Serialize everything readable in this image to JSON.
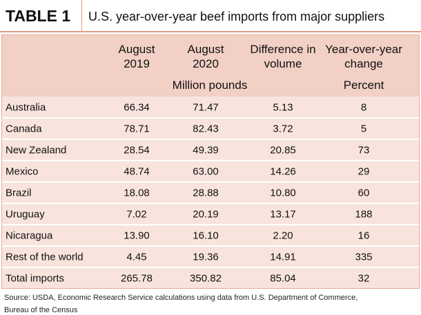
{
  "header": {
    "label": "TABLE 1",
    "title": "U.S. year-over-year beef imports from major suppliers"
  },
  "table": {
    "columns": [
      [
        "August",
        "2019"
      ],
      [
        "August",
        "2020"
      ],
      [
        "Difference in",
        "volume"
      ],
      [
        "Year-over-year",
        "change"
      ]
    ],
    "units": [
      "Million pounds",
      "Percent"
    ],
    "rows": [
      [
        "Australia",
        "66.34",
        "71.47",
        "5.13",
        "8"
      ],
      [
        "Canada",
        "78.71",
        "82.43",
        "3.72",
        "5"
      ],
      [
        "New Zealand",
        "28.54",
        "49.39",
        "20.85",
        "73"
      ],
      [
        "Mexico",
        "48.74",
        "63.00",
        "14.26",
        "29"
      ],
      [
        "Brazil",
        "18.08",
        "28.88",
        "10.80",
        "60"
      ],
      [
        "Uruguay",
        "7.02",
        "20.19",
        "13.17",
        "188"
      ],
      [
        "Nicaragua",
        "13.90",
        "16.10",
        "2.20",
        "16"
      ],
      [
        "Rest of the world",
        "4.45",
        "19.36",
        "14.91",
        "335"
      ],
      [
        "Total imports",
        "265.78",
        "350.82",
        "85.04",
        "32"
      ]
    ]
  },
  "source": [
    "Source: USDA, Economic Research Service calculations using data from U.S. Department of Commerce,",
    "Bureau of the Census"
  ]
}
